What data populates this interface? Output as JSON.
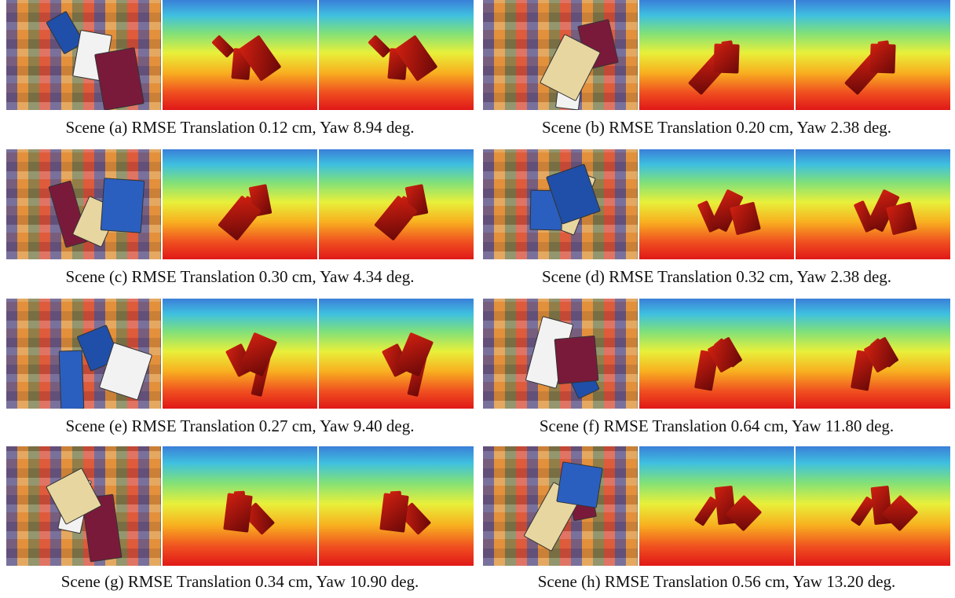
{
  "panels": [
    {
      "caption": "Scene (a) RMSE Translation 0.12 cm, Yaw 8.94 deg."
    },
    {
      "caption": "Scene (b) RMSE Translation 0.20 cm, Yaw 2.38 deg."
    },
    {
      "caption": "Scene (c) RMSE Translation 0.30 cm, Yaw 4.34 deg."
    },
    {
      "caption": "Scene (d) RMSE Translation 0.32 cm, Yaw 2.38 deg."
    },
    {
      "caption": "Scene (e) RMSE Translation 0.27 cm, Yaw 9.40 deg."
    },
    {
      "caption": "Scene (f) RMSE Translation 0.64 cm, Yaw 11.80 deg."
    },
    {
      "caption": "Scene (g) RMSE Translation 0.34 cm, Yaw 10.90 deg."
    },
    {
      "caption": "Scene (h) RMSE Translation 0.56 cm, Yaw 13.20 deg."
    }
  ]
}
